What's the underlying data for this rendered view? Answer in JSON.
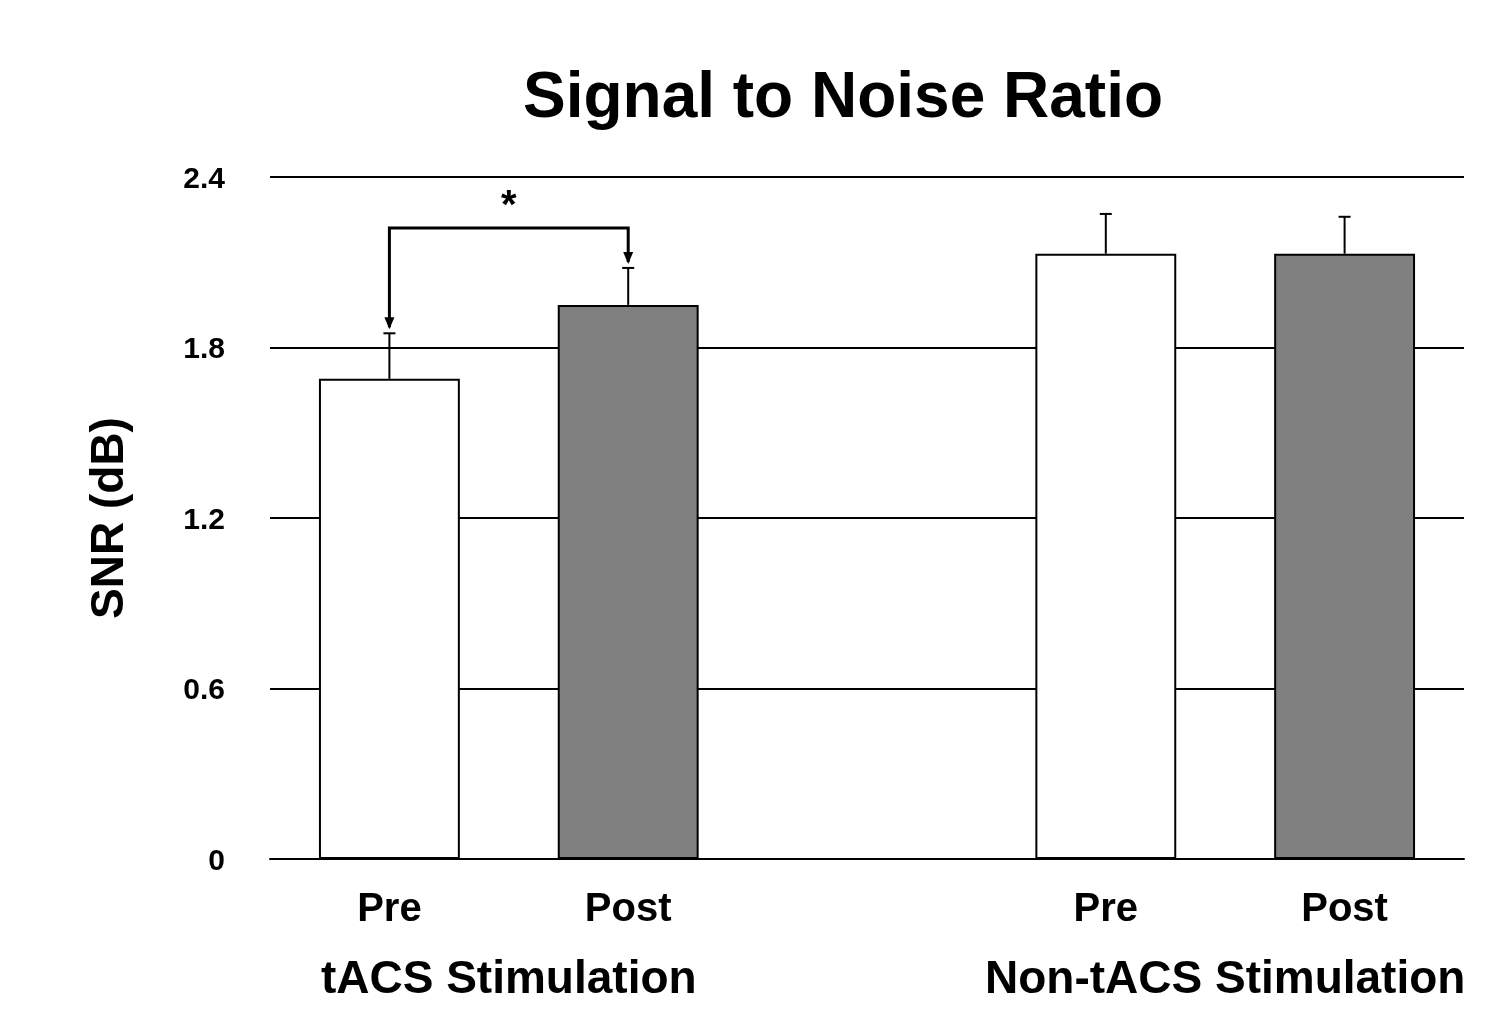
{
  "chart_data": {
    "type": "bar",
    "title": "Signal to Noise Ratio",
    "ylabel": "SNR (dB)",
    "categories": [
      "Pre",
      "Post",
      null,
      "Pre",
      "Post"
    ],
    "values": [
      1.69,
      1.95,
      null,
      2.13,
      2.13
    ],
    "colors": [
      "#ffffff",
      "#808080",
      null,
      "#ffffff",
      "#808080"
    ],
    "errors": [
      [
        1.69,
        1.85
      ],
      [
        1.95,
        2.08
      ],
      null,
      [
        2.13,
        2.27
      ],
      [
        2.13,
        2.26
      ]
    ],
    "ylim": [
      0,
      2.4
    ],
    "yticks": [
      0,
      0.6,
      1.2,
      1.8,
      2.4
    ],
    "grid": "y",
    "annotations": [
      "*",
      "tACS Stimulation",
      "Non-tACS Stimulation"
    ]
  }
}
